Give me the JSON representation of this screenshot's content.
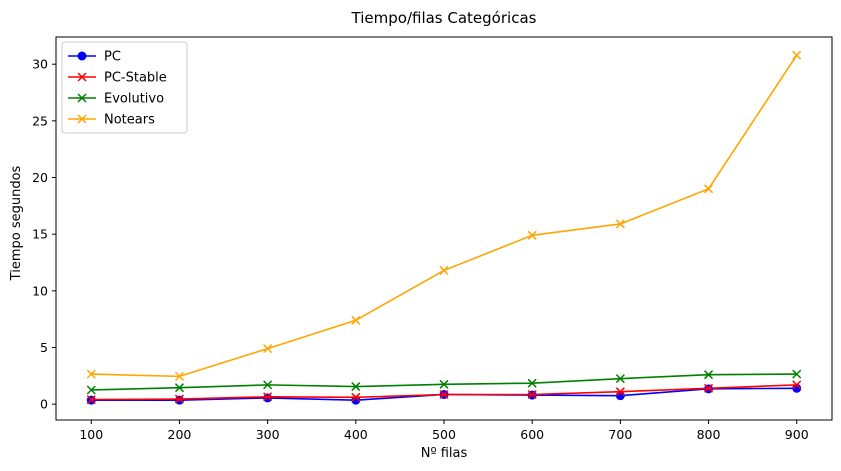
{
  "chart_data": {
    "type": "line",
    "title": "Tiempo/filas Categóricas",
    "xlabel": "Nº filas",
    "ylabel": "Tiempo segundos",
    "x": [
      100,
      200,
      300,
      400,
      500,
      600,
      700,
      800,
      900
    ],
    "xlim": [
      60,
      940
    ],
    "ylim": [
      -1.4,
      32.4
    ],
    "xticks": [
      "100",
      "200",
      "300",
      "400",
      "500",
      "600",
      "700",
      "800",
      "900"
    ],
    "yticks": [
      "0",
      "5",
      "10",
      "15",
      "20",
      "25",
      "30"
    ],
    "grid": false,
    "legend_position": "top-left",
    "series": [
      {
        "name": "PC",
        "color": "#0000ff",
        "marker": "circle",
        "values": [
          0.35,
          0.35,
          0.55,
          0.35,
          0.85,
          0.8,
          0.75,
          1.35,
          1.4
        ]
      },
      {
        "name": "PC-Stable",
        "color": "#ff0000",
        "marker": "x",
        "values": [
          0.4,
          0.45,
          0.65,
          0.6,
          0.85,
          0.85,
          1.1,
          1.4,
          1.7
        ]
      },
      {
        "name": "Evolutivo",
        "color": "#008000",
        "marker": "x",
        "values": [
          1.25,
          1.45,
          1.7,
          1.55,
          1.75,
          1.85,
          2.25,
          2.6,
          2.65
        ]
      },
      {
        "name": "Notears",
        "color": "#ffa500",
        "marker": "x",
        "values": [
          2.65,
          2.45,
          4.9,
          7.4,
          11.8,
          14.9,
          15.9,
          19.0,
          30.8
        ]
      }
    ]
  }
}
